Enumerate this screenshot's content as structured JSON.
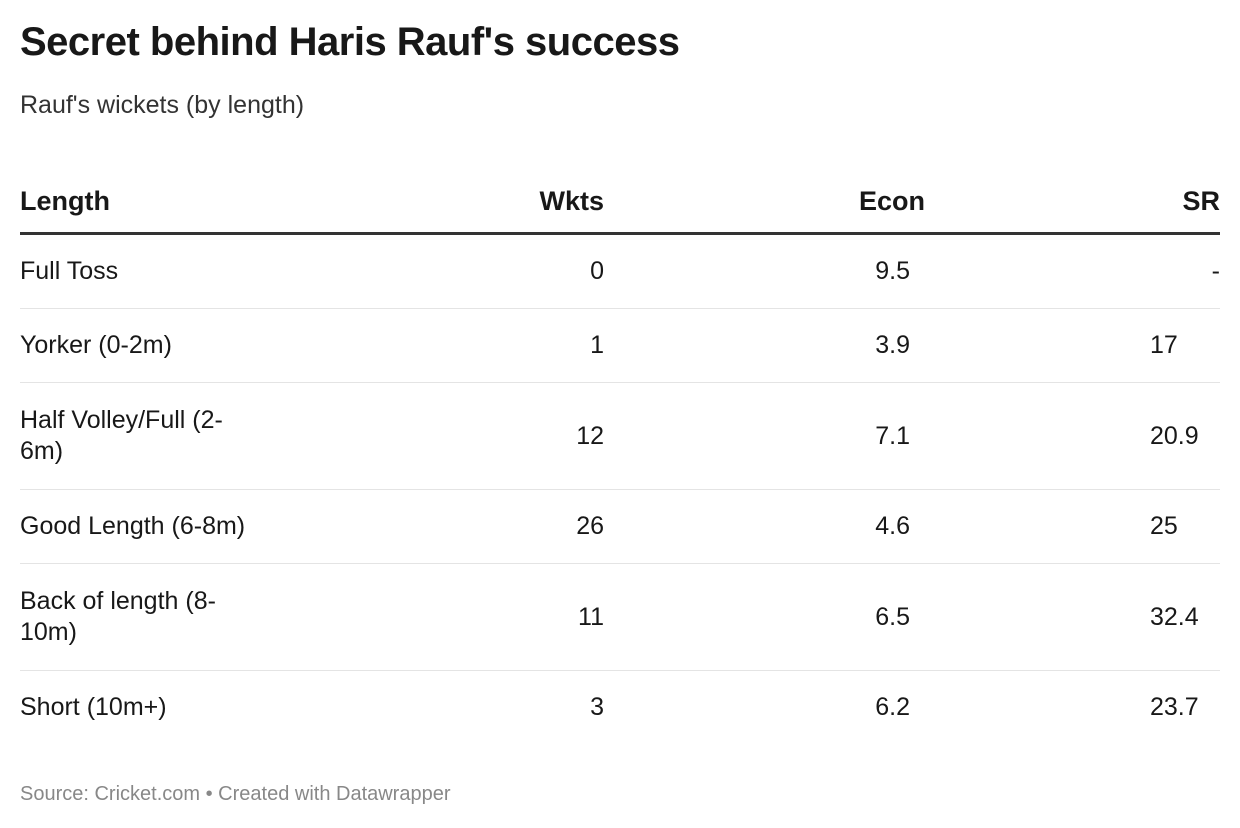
{
  "title": "Secret behind Haris Rauf's success",
  "subtitle": "Rauf's wickets (by length)",
  "footer": "Source: Cricket.com • Created with Datawrapper",
  "chart_data": {
    "type": "table",
    "columns": [
      "Length",
      "Wkts",
      "Econ",
      "SR"
    ],
    "rows": [
      [
        "Full Toss",
        "0",
        "9.5",
        "-"
      ],
      [
        "Yorker (0-2m)",
        "1",
        "3.9",
        "17"
      ],
      [
        "Half Volley/Full (2-6m)",
        "12",
        "7.1",
        "20.9"
      ],
      [
        "Good Length (6-8m)",
        "26",
        "4.6",
        "25"
      ],
      [
        "Back of length (8-10m)",
        "11",
        "6.5",
        "32.4"
      ],
      [
        "Short (10m+)",
        "3",
        "6.2",
        "23.7"
      ]
    ]
  }
}
